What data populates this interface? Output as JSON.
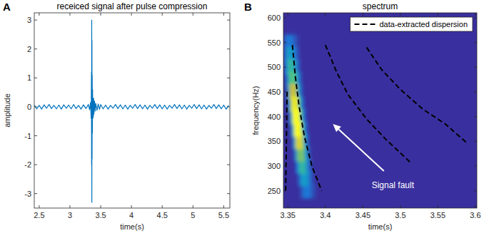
{
  "chart_data": [
    {
      "label": "A",
      "type": "line",
      "title": "receiced signal after pulse compression",
      "x_label": "time(s)",
      "y_label": "amplitude",
      "xlim": [
        2.42,
        5.6
      ],
      "ylim": [
        -3.5,
        3.25
      ],
      "xticks": [
        2.5,
        3,
        3.5,
        4,
        4.5,
        5,
        5.5
      ],
      "yticks": [
        -3,
        -2,
        -1,
        0,
        1,
        2,
        3
      ],
      "series": [
        {
          "color": "#0072bd",
          "x": [
            2.42,
            2.46,
            2.5,
            2.54,
            2.58,
            2.62,
            2.66,
            2.7,
            2.74,
            2.78,
            2.82,
            2.86,
            2.9,
            2.94,
            2.98,
            3.02,
            3.06,
            3.1,
            3.14,
            3.18,
            3.22,
            3.26,
            3.3,
            3.32,
            3.335,
            3.345,
            3.35,
            3.352,
            3.354,
            3.356,
            3.358,
            3.36,
            3.362,
            3.365,
            3.368,
            3.372,
            3.376,
            3.38,
            3.385,
            3.39,
            3.4,
            3.41,
            3.42,
            3.44,
            3.46,
            3.48,
            3.5,
            3.54,
            3.58,
            3.62,
            3.66,
            3.7,
            3.74,
            3.78,
            3.82,
            3.86,
            3.9,
            3.94,
            3.98,
            4.02,
            4.06,
            4.1,
            4.14,
            4.18,
            4.22,
            4.26,
            4.3,
            4.34,
            4.38,
            4.42,
            4.46,
            4.5,
            4.54,
            4.58,
            4.62,
            4.66,
            4.7,
            4.74,
            4.78,
            4.82,
            4.86,
            4.9,
            4.94,
            4.98,
            5.02,
            5.06,
            5.1,
            5.14,
            5.18,
            5.22,
            5.26,
            5.3,
            5.34,
            5.38,
            5.42,
            5.46,
            5.5,
            5.54,
            5.58
          ],
          "values": [
            0.06,
            -0.07,
            0.05,
            -0.08,
            0.07,
            -0.05,
            0.08,
            -0.06,
            0.05,
            -0.07,
            0.06,
            -0.08,
            0.07,
            -0.05,
            0.06,
            -0.07,
            0.08,
            -0.06,
            0.05,
            -0.08,
            0.07,
            -0.06,
            0.08,
            -0.1,
            0.15,
            -0.4,
            1.2,
            -2,
            3,
            -3.3,
            2.3,
            -1.8,
            1.1,
            -0.9,
            0.6,
            -0.4,
            0.3,
            -0.35,
            0.3,
            -0.25,
            0.2,
            -0.15,
            0.12,
            -0.12,
            0.1,
            -0.09,
            0.08,
            -0.07,
            0.06,
            -0.08,
            0.05,
            -0.05,
            0.08,
            -0.06,
            0.07,
            -0.07,
            0.06,
            -0.08,
            0.05,
            -0.05,
            0.08,
            -0.06,
            0.07,
            -0.07,
            0.06,
            -0.08,
            0.05,
            -0.05,
            0.08,
            -0.06,
            0.07,
            -0.07,
            0.06,
            -0.08,
            0.05,
            -0.05,
            0.08,
            -0.06,
            0.07,
            -0.07,
            0.06,
            -0.08,
            0.05,
            -0.05,
            0.08,
            -0.06,
            0.07,
            -0.07,
            0.06,
            -0.08,
            0.05,
            -0.05,
            0.08,
            -0.06,
            0.07,
            -0.07,
            0.06,
            -0.08,
            0.05
          ]
        }
      ]
    },
    {
      "label": "B",
      "type": "spectrogram",
      "title": "spectrum",
      "x_label": "time(s)",
      "y_label": "frequency(Hz)",
      "xlim": [
        3.344,
        3.602
      ],
      "ylim": [
        215,
        610
      ],
      "xticks": [
        3.35,
        3.4,
        3.45,
        3.5,
        3.55,
        3.6
      ],
      "yticks": [
        250,
        300,
        350,
        400,
        450,
        500,
        550,
        600
      ],
      "color_range": [
        0,
        1
      ],
      "cells": {
        "x": [
          3.348,
          3.352,
          3.356,
          3.36,
          3.349,
          3.353,
          3.357,
          3.361,
          3.35,
          3.354,
          3.358,
          3.362,
          3.352,
          3.356,
          3.36,
          3.364,
          3.353,
          3.357,
          3.361,
          3.365,
          3.355,
          3.359,
          3.363,
          3.367,
          3.357,
          3.361,
          3.365,
          3.369,
          3.359,
          3.363,
          3.367,
          3.371,
          3.361,
          3.365,
          3.369,
          3.373,
          3.363,
          3.367,
          3.371,
          3.375,
          3.365,
          3.369,
          3.373,
          3.377,
          3.368,
          3.372,
          3.376,
          3.38,
          3.371,
          3.375,
          3.379,
          3.383
        ],
        "y": [
          550,
          550,
          550,
          550,
          525,
          525,
          525,
          525,
          500,
          500,
          500,
          500,
          475,
          475,
          475,
          475,
          450,
          450,
          450,
          450,
          425,
          425,
          425,
          425,
          400,
          400,
          400,
          400,
          375,
          375,
          375,
          375,
          350,
          350,
          350,
          350,
          325,
          325,
          325,
          325,
          300,
          300,
          300,
          300,
          275,
          275,
          275,
          275,
          250,
          250,
          250,
          250
        ],
        "values": [
          0.15,
          0.3,
          0.18,
          0.08,
          0.23,
          0.45,
          0.27,
          0.11,
          0.3,
          0.6,
          0.36,
          0.15,
          0.35,
          0.7,
          0.42,
          0.18,
          0.43,
          0.85,
          0.51,
          0.21,
          0.48,
          0.95,
          0.57,
          0.24,
          0.5,
          1,
          0.6,
          0.25,
          0.5,
          1,
          0.6,
          0.25,
          0.45,
          0.9,
          0.54,
          0.23,
          0.38,
          0.75,
          0.45,
          0.19,
          0.3,
          0.6,
          0.36,
          0.15,
          0.23,
          0.45,
          0.27,
          0.11,
          0.15,
          0.3,
          0.18,
          0.08
        ]
      },
      "series": [
        {
          "name": "data-extracted dispersion",
          "color": "#000000",
          "line_style": "dashed",
          "x": [
            3.347,
            3.348,
            3.349,
            null,
            3.356,
            3.36,
            3.365,
            3.372,
            3.382,
            3.395,
            null,
            3.4,
            3.415,
            3.43,
            3.455,
            3.48,
            3.515,
            null,
            3.455,
            3.475,
            3.5,
            3.53,
            3.56,
            3.59
          ],
          "values": [
            250,
            350,
            455,
            null,
            545,
            480,
            420,
            360,
            300,
            250,
            null,
            545,
            490,
            445,
            395,
            355,
            305,
            null,
            540,
            495,
            455,
            415,
            385,
            345
          ]
        }
      ],
      "legend": "northeast",
      "annotations": [
        {
          "text": "Signal fault",
          "x": 3.49,
          "y": 255,
          "arrow_from": [
            3.478,
            290
          ],
          "arrow_to": [
            3.41,
            385
          ],
          "color": "#ffffff"
        }
      ]
    }
  ]
}
